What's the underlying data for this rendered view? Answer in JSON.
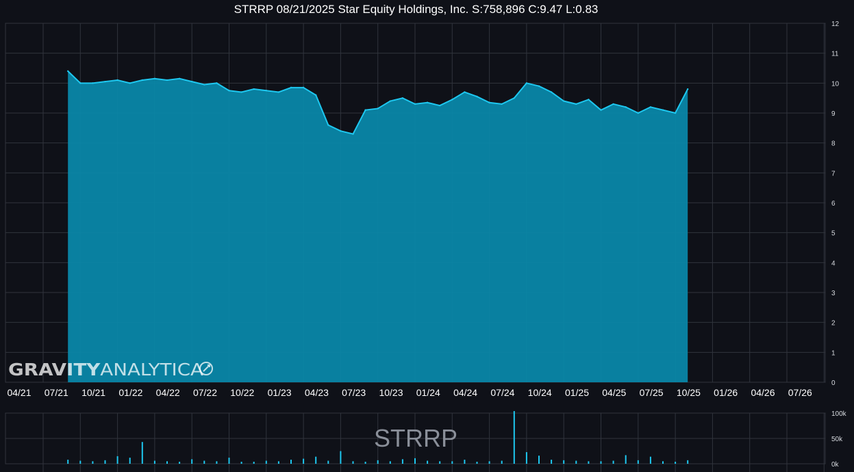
{
  "title": "STRRP 08/21/2025 Star Equity Holdings, Inc. S:758,896 C:9.47 L:0.83",
  "watermark": {
    "bold": "GRAVITY",
    "light": "ANALYTICA"
  },
  "volume_symbol": "STRRP",
  "colors": {
    "background": "#0f1118",
    "grid": "#30343d",
    "line": "#1ec8f0",
    "fill": "#0a87a8",
    "volume": "#1ec8f0"
  },
  "chart_data": [
    {
      "type": "area",
      "name": "price",
      "x_tick_labels": [
        "04/21",
        "07/21",
        "10/21",
        "01/22",
        "04/22",
        "07/22",
        "10/22",
        "01/23",
        "04/23",
        "07/23",
        "10/23",
        "01/24",
        "04/24",
        "07/24",
        "10/24",
        "01/25",
        "04/25",
        "07/25",
        "10/25",
        "01/26",
        "04/26",
        "07/26"
      ],
      "y_ticks": [
        0,
        1,
        2,
        3,
        4,
        5,
        6,
        7,
        8,
        9,
        10,
        11,
        12
      ],
      "ylim": [
        0,
        12
      ],
      "x": [
        "06/21",
        "07/21",
        "08/21",
        "09/21",
        "10/21",
        "11/21",
        "12/21",
        "01/22",
        "02/22",
        "03/22",
        "04/22",
        "05/22",
        "06/22",
        "07/22",
        "08/22",
        "09/22",
        "10/22",
        "11/22",
        "12/22",
        "01/23",
        "02/23",
        "03/23",
        "04/23",
        "05/23",
        "06/23",
        "07/23",
        "08/23",
        "09/23",
        "10/23",
        "11/23",
        "12/23",
        "01/24",
        "02/24",
        "03/24",
        "04/24",
        "05/24",
        "06/24",
        "07/24",
        "08/24",
        "09/24",
        "10/24",
        "11/24",
        "12/24",
        "01/25",
        "02/25",
        "03/25",
        "04/25",
        "05/25",
        "06/25",
        "07/25",
        "08/25"
      ],
      "values": [
        10.4,
        10.0,
        10.0,
        10.05,
        10.1,
        10.0,
        10.1,
        10.15,
        10.1,
        10.15,
        10.05,
        9.95,
        10.0,
        9.75,
        9.7,
        9.8,
        9.75,
        9.7,
        9.85,
        9.85,
        9.6,
        8.6,
        8.4,
        8.3,
        9.1,
        9.15,
        9.4,
        9.5,
        9.3,
        9.35,
        9.25,
        9.45,
        9.7,
        9.55,
        9.35,
        9.3,
        9.5,
        10.0,
        9.9,
        9.7,
        9.4,
        9.3,
        9.45,
        9.1,
        9.3,
        9.2,
        9.0,
        9.2,
        9.1,
        9.0,
        9.8
      ],
      "grid": true
    },
    {
      "type": "bar",
      "name": "volume",
      "y_tick_labels": [
        "100k",
        "50k",
        "0k"
      ],
      "ylim": [
        0,
        100000
      ],
      "x": [
        "06/21",
        "07/21",
        "08/21",
        "09/21",
        "10/21",
        "11/21",
        "12/21",
        "01/22",
        "02/22",
        "03/22",
        "04/22",
        "05/22",
        "06/22",
        "07/22",
        "08/22",
        "09/22",
        "10/22",
        "11/22",
        "12/22",
        "01/23",
        "02/23",
        "03/23",
        "04/23",
        "05/23",
        "06/23",
        "07/23",
        "08/23",
        "09/23",
        "10/23",
        "11/23",
        "12/23",
        "01/24",
        "02/24",
        "03/24",
        "04/24",
        "05/24",
        "06/24",
        "07/24",
        "08/24",
        "09/24",
        "10/24",
        "11/24",
        "12/24",
        "01/25",
        "02/25",
        "03/25",
        "04/25",
        "05/25",
        "06/25",
        "07/25",
        "08/25"
      ],
      "values": [
        8000,
        6000,
        5000,
        7000,
        15000,
        12000,
        43000,
        6000,
        5000,
        4000,
        9000,
        6000,
        5000,
        12000,
        4000,
        4000,
        6000,
        5000,
        8000,
        10000,
        14000,
        6000,
        25000,
        5000,
        4000,
        7000,
        5000,
        9000,
        11000,
        6000,
        5000,
        5000,
        8000,
        4000,
        5000,
        6000,
        104000,
        23000,
        16000,
        8000,
        7000,
        6000,
        5000,
        5000,
        6000,
        17000,
        7000,
        14000,
        5000,
        4000,
        7000
      ]
    }
  ]
}
